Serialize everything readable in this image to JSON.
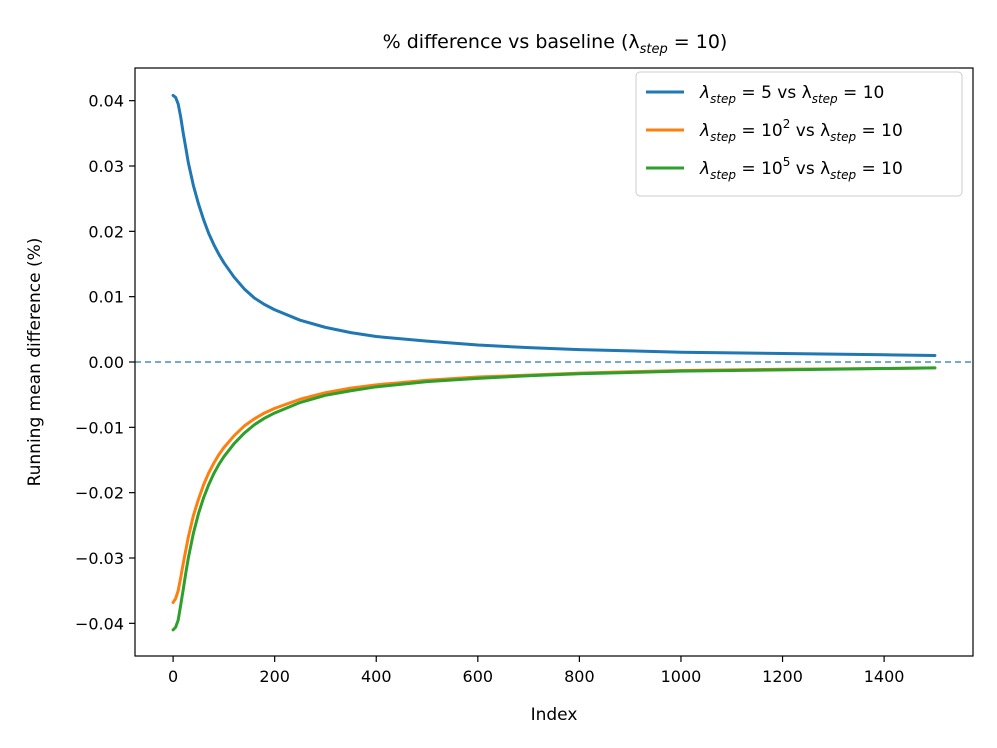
{
  "chart_data": {
    "type": "line",
    "title": "% difference vs baseline (λ",
    "title_sub": "step",
    "title_tail": " = 10)",
    "xlabel": "Index",
    "ylabel": "Running mean difference (%)",
    "xlim": [
      -75,
      1575
    ],
    "ylim": [
      -0.045,
      0.045
    ],
    "xticks": [
      0,
      200,
      400,
      600,
      800,
      1000,
      1200,
      1400
    ],
    "xtick_labels": [
      "0",
      "200",
      "400",
      "600",
      "800",
      "1000",
      "1200",
      "1400"
    ],
    "yticks": [
      -0.04,
      -0.03,
      -0.02,
      -0.01,
      0.0,
      0.01,
      0.02,
      0.03,
      0.04
    ],
    "ytick_labels": [
      "−0.04",
      "−0.03",
      "−0.02",
      "−0.01",
      "0.00",
      "0.01",
      "0.02",
      "0.03",
      "0.04"
    ],
    "reference_line": {
      "y": 0.0,
      "style": "dashed",
      "color": "#1f77b4"
    },
    "legend_position": "top-right",
    "series": [
      {
        "name": "λstep = 5 vs λstep = 10",
        "legend": {
          "pre": "λ",
          "sub": "step",
          "mid": " = 5 vs λ",
          "sub2": "step",
          "tail": " = 10"
        },
        "color": "#1f77b4",
        "x": [
          0,
          5,
          10,
          15,
          20,
          25,
          30,
          40,
          50,
          60,
          70,
          80,
          90,
          100,
          120,
          140,
          160,
          180,
          200,
          250,
          300,
          350,
          400,
          500,
          600,
          700,
          800,
          900,
          1000,
          1200,
          1400,
          1500
        ],
        "y": [
          0.0408,
          0.0405,
          0.0395,
          0.0375,
          0.035,
          0.0328,
          0.0305,
          0.027,
          0.0242,
          0.0218,
          0.0197,
          0.018,
          0.0165,
          0.0152,
          0.013,
          0.0112,
          0.0098,
          0.0088,
          0.008,
          0.0064,
          0.0053,
          0.0045,
          0.0039,
          0.0032,
          0.0026,
          0.0022,
          0.0019,
          0.0017,
          0.0015,
          0.0013,
          0.0011,
          0.001
        ]
      },
      {
        "name": "λstep = 10² vs λstep = 10",
        "legend": {
          "pre": "λ",
          "sub": "step",
          "mid": " = 10",
          "sup": "2",
          "mid2": " vs λ",
          "sub2": "step",
          "tail": " = 10"
        },
        "color": "#ff7f0e",
        "x": [
          0,
          5,
          10,
          15,
          20,
          25,
          30,
          40,
          50,
          60,
          70,
          80,
          90,
          100,
          120,
          140,
          160,
          180,
          200,
          250,
          300,
          350,
          400,
          500,
          600,
          700,
          800,
          900,
          1000,
          1200,
          1400,
          1500
        ],
        "y": [
          -0.0368,
          -0.0362,
          -0.035,
          -0.033,
          -0.0308,
          -0.0288,
          -0.0268,
          -0.0235,
          -0.021,
          -0.0188,
          -0.017,
          -0.0155,
          -0.0142,
          -0.0131,
          -0.0113,
          -0.0098,
          -0.0087,
          -0.0078,
          -0.0071,
          -0.0057,
          -0.0047,
          -0.004,
          -0.0035,
          -0.0028,
          -0.0023,
          -0.002,
          -0.0017,
          -0.0015,
          -0.0013,
          -0.0011,
          -0.001,
          -0.0009
        ]
      },
      {
        "name": "λstep = 10⁵ vs λstep = 10",
        "legend": {
          "pre": "λ",
          "sub": "step",
          "mid": " = 10",
          "sup": "5",
          "mid2": " vs λ",
          "sub2": "step",
          "tail": " = 10"
        },
        "color": "#2ca02c",
        "x": [
          0,
          5,
          10,
          15,
          20,
          25,
          30,
          40,
          50,
          60,
          70,
          80,
          90,
          100,
          120,
          140,
          160,
          180,
          200,
          250,
          300,
          350,
          400,
          500,
          600,
          700,
          800,
          900,
          1000,
          1200,
          1400,
          1500
        ],
        "y": [
          -0.041,
          -0.0406,
          -0.0395,
          -0.0372,
          -0.0348,
          -0.0323,
          -0.03,
          -0.0262,
          -0.0232,
          -0.0208,
          -0.0188,
          -0.0171,
          -0.0157,
          -0.0145,
          -0.0125,
          -0.0109,
          -0.0096,
          -0.0086,
          -0.0078,
          -0.0062,
          -0.0051,
          -0.0044,
          -0.0038,
          -0.003,
          -0.0025,
          -0.0021,
          -0.0018,
          -0.0016,
          -0.0014,
          -0.0012,
          -0.001,
          -0.0009
        ]
      }
    ]
  }
}
